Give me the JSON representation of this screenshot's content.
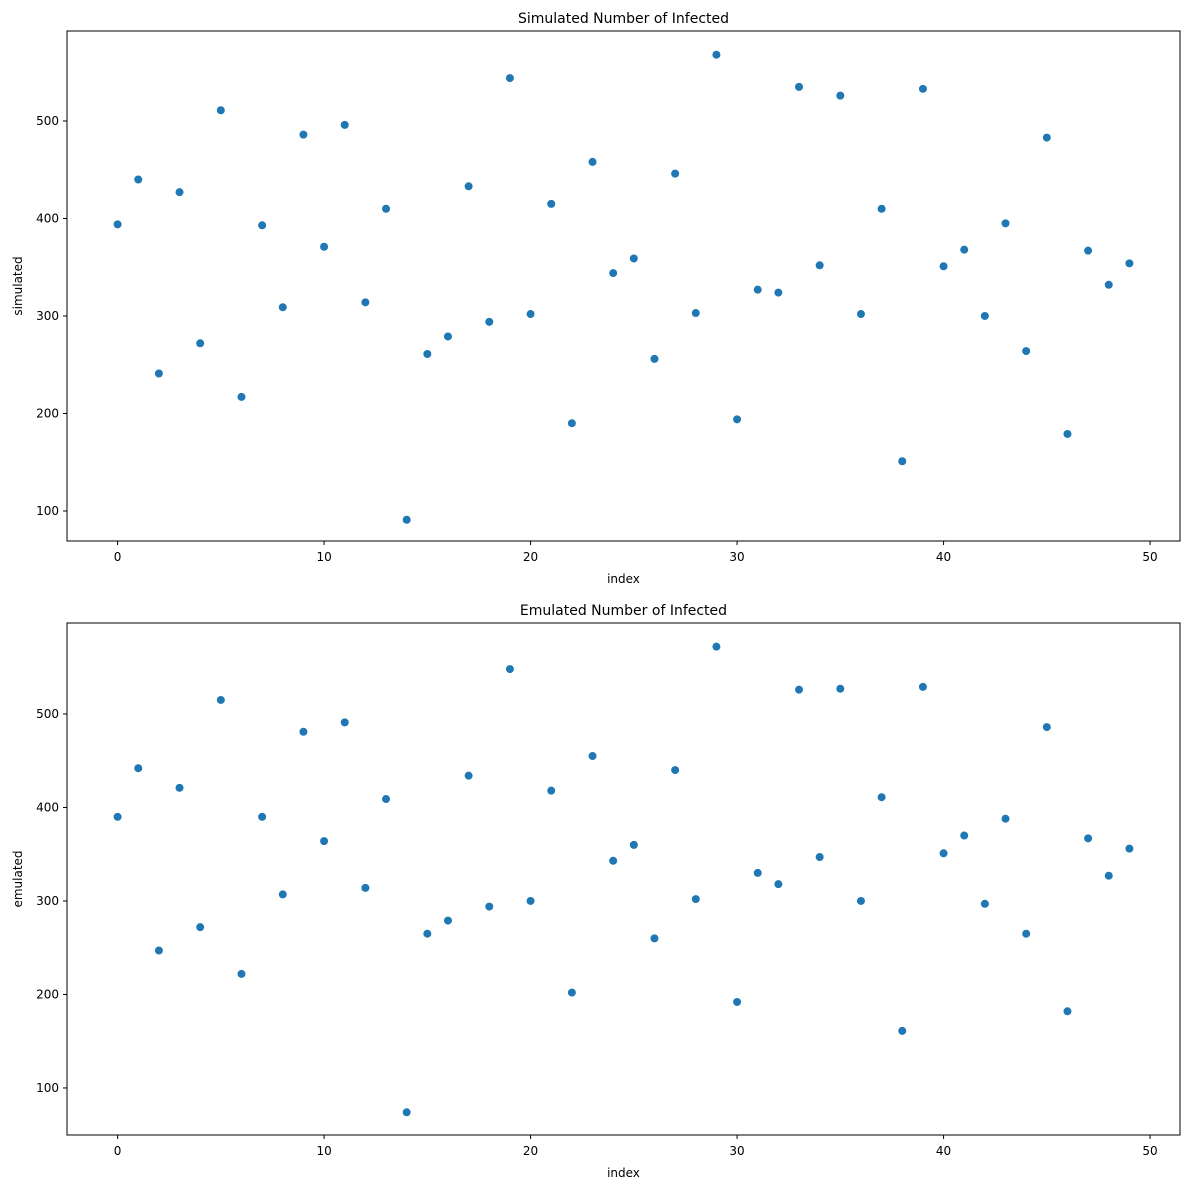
{
  "chart_data": [
    {
      "type": "scatter",
      "title": "Simulated Number of Infected",
      "x_label": "index",
      "y_label": "simulated",
      "color": "#1f77b4",
      "x": [
        0,
        1,
        2,
        3,
        4,
        5,
        6,
        7,
        8,
        9,
        10,
        11,
        12,
        13,
        14,
        15,
        16,
        17,
        18,
        19,
        20,
        21,
        22,
        23,
        24,
        25,
        26,
        27,
        28,
        29,
        30,
        31,
        32,
        33,
        34,
        35,
        36,
        37,
        38,
        39,
        40,
        41,
        42,
        43,
        44,
        45,
        46,
        47,
        48,
        49
      ],
      "values": [
        394,
        440,
        241,
        427,
        272,
        511,
        217,
        393,
        309,
        486,
        371,
        496,
        314,
        410,
        91,
        261,
        279,
        433,
        294,
        544,
        302,
        415,
        190,
        458,
        344,
        359,
        256,
        446,
        303,
        568,
        194,
        327,
        324,
        535,
        352,
        526,
        302,
        410,
        151,
        533,
        351,
        368,
        300,
        395,
        264,
        483,
        179,
        367,
        332,
        354
      ],
      "xlim": [
        -2.45,
        51.45
      ],
      "ylim": [
        69.2,
        592.3
      ],
      "xticks": [
        0,
        10,
        20,
        30,
        40,
        50
      ],
      "yticks": [
        100,
        200,
        300,
        400,
        500
      ]
    },
    {
      "type": "scatter",
      "title": "Emulated Number of Infected",
      "x_label": "index",
      "y_label": "emulated",
      "color": "#1f77b4",
      "x": [
        0,
        1,
        2,
        3,
        4,
        5,
        6,
        7,
        8,
        9,
        10,
        11,
        12,
        13,
        14,
        15,
        16,
        17,
        18,
        19,
        20,
        21,
        22,
        23,
        24,
        25,
        26,
        27,
        28,
        29,
        30,
        31,
        32,
        33,
        34,
        35,
        36,
        37,
        38,
        39,
        40,
        41,
        42,
        43,
        44,
        45,
        46,
        47,
        48,
        49
      ],
      "values": [
        390,
        442,
        247,
        421,
        272,
        515,
        222,
        390,
        307,
        481,
        364,
        491,
        314,
        409,
        74,
        265,
        279,
        434,
        294,
        548,
        300,
        418,
        202,
        455,
        343,
        360,
        260,
        440,
        302,
        572,
        192,
        330,
        318,
        526,
        347,
        527,
        300,
        411,
        161,
        529,
        351,
        370,
        297,
        388,
        265,
        486,
        182,
        367,
        327,
        356
      ],
      "xlim": [
        -2.45,
        51.45
      ],
      "ylim": [
        49.7,
        597.3
      ],
      "xticks": [
        0,
        10,
        20,
        30,
        40,
        50
      ],
      "yticks": [
        100,
        200,
        300,
        400,
        500
      ]
    }
  ]
}
